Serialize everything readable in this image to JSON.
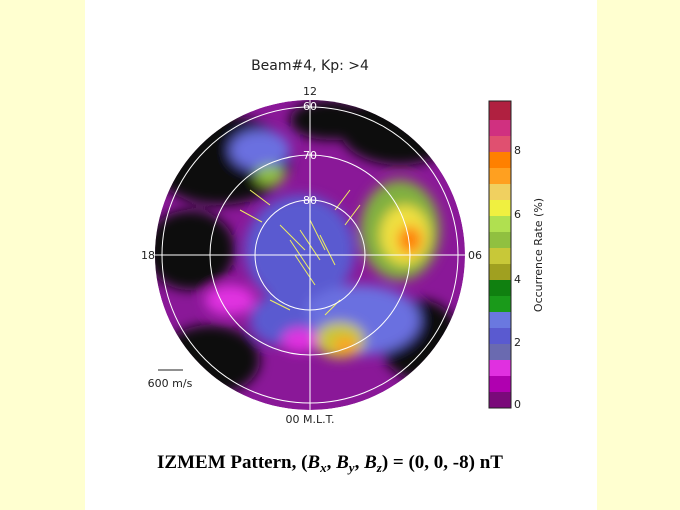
{
  "title": "Beam#4, Kp: >4",
  "plot": {
    "mlt_labels": {
      "top": "12",
      "left": "18",
      "right": "06",
      "bottom": "00 M.L.T."
    },
    "latitude_labels": [
      "60",
      "70",
      "80"
    ],
    "scale_label": "600 m/s"
  },
  "colorbar": {
    "label": "Occurrence Rate (%)",
    "ticks": [
      "0",
      "2",
      "4",
      "6",
      "8"
    ]
  },
  "caption": {
    "parts": [
      "IZMEM Pattern, (",
      "B",
      "x",
      ", ",
      "B",
      "y",
      ", ",
      "B",
      "z",
      ") = (0, 0, -8) nT"
    ]
  }
}
